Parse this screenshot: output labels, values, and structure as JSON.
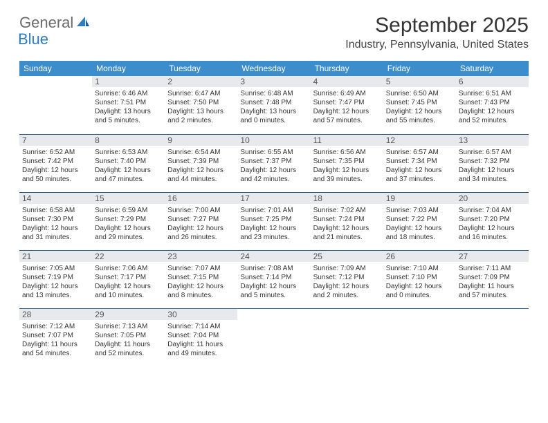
{
  "logo": {
    "general": "General",
    "blue": "Blue"
  },
  "title": "September 2025",
  "location": "Industry, Pennsylvania, United States",
  "header_bg": "#3c8dcb",
  "border_color": "#2b5a82",
  "daynum_bg": "#e7e9ec",
  "weekdays": [
    "Sunday",
    "Monday",
    "Tuesday",
    "Wednesday",
    "Thursday",
    "Friday",
    "Saturday"
  ],
  "start_offset": 1,
  "days": [
    {
      "n": 1,
      "sr": "6:46 AM",
      "ss": "7:51 PM",
      "dl": "13 hours and 5 minutes."
    },
    {
      "n": 2,
      "sr": "6:47 AM",
      "ss": "7:50 PM",
      "dl": "13 hours and 2 minutes."
    },
    {
      "n": 3,
      "sr": "6:48 AM",
      "ss": "7:48 PM",
      "dl": "13 hours and 0 minutes."
    },
    {
      "n": 4,
      "sr": "6:49 AM",
      "ss": "7:47 PM",
      "dl": "12 hours and 57 minutes."
    },
    {
      "n": 5,
      "sr": "6:50 AM",
      "ss": "7:45 PM",
      "dl": "12 hours and 55 minutes."
    },
    {
      "n": 6,
      "sr": "6:51 AM",
      "ss": "7:43 PM",
      "dl": "12 hours and 52 minutes."
    },
    {
      "n": 7,
      "sr": "6:52 AM",
      "ss": "7:42 PM",
      "dl": "12 hours and 50 minutes."
    },
    {
      "n": 8,
      "sr": "6:53 AM",
      "ss": "7:40 PM",
      "dl": "12 hours and 47 minutes."
    },
    {
      "n": 9,
      "sr": "6:54 AM",
      "ss": "7:39 PM",
      "dl": "12 hours and 44 minutes."
    },
    {
      "n": 10,
      "sr": "6:55 AM",
      "ss": "7:37 PM",
      "dl": "12 hours and 42 minutes."
    },
    {
      "n": 11,
      "sr": "6:56 AM",
      "ss": "7:35 PM",
      "dl": "12 hours and 39 minutes."
    },
    {
      "n": 12,
      "sr": "6:57 AM",
      "ss": "7:34 PM",
      "dl": "12 hours and 37 minutes."
    },
    {
      "n": 13,
      "sr": "6:57 AM",
      "ss": "7:32 PM",
      "dl": "12 hours and 34 minutes."
    },
    {
      "n": 14,
      "sr": "6:58 AM",
      "ss": "7:30 PM",
      "dl": "12 hours and 31 minutes."
    },
    {
      "n": 15,
      "sr": "6:59 AM",
      "ss": "7:29 PM",
      "dl": "12 hours and 29 minutes."
    },
    {
      "n": 16,
      "sr": "7:00 AM",
      "ss": "7:27 PM",
      "dl": "12 hours and 26 minutes."
    },
    {
      "n": 17,
      "sr": "7:01 AM",
      "ss": "7:25 PM",
      "dl": "12 hours and 23 minutes."
    },
    {
      "n": 18,
      "sr": "7:02 AM",
      "ss": "7:24 PM",
      "dl": "12 hours and 21 minutes."
    },
    {
      "n": 19,
      "sr": "7:03 AM",
      "ss": "7:22 PM",
      "dl": "12 hours and 18 minutes."
    },
    {
      "n": 20,
      "sr": "7:04 AM",
      "ss": "7:20 PM",
      "dl": "12 hours and 16 minutes."
    },
    {
      "n": 21,
      "sr": "7:05 AM",
      "ss": "7:19 PM",
      "dl": "12 hours and 13 minutes."
    },
    {
      "n": 22,
      "sr": "7:06 AM",
      "ss": "7:17 PM",
      "dl": "12 hours and 10 minutes."
    },
    {
      "n": 23,
      "sr": "7:07 AM",
      "ss": "7:15 PM",
      "dl": "12 hours and 8 minutes."
    },
    {
      "n": 24,
      "sr": "7:08 AM",
      "ss": "7:14 PM",
      "dl": "12 hours and 5 minutes."
    },
    {
      "n": 25,
      "sr": "7:09 AM",
      "ss": "7:12 PM",
      "dl": "12 hours and 2 minutes."
    },
    {
      "n": 26,
      "sr": "7:10 AM",
      "ss": "7:10 PM",
      "dl": "12 hours and 0 minutes."
    },
    {
      "n": 27,
      "sr": "7:11 AM",
      "ss": "7:09 PM",
      "dl": "11 hours and 57 minutes."
    },
    {
      "n": 28,
      "sr": "7:12 AM",
      "ss": "7:07 PM",
      "dl": "11 hours and 54 minutes."
    },
    {
      "n": 29,
      "sr": "7:13 AM",
      "ss": "7:05 PM",
      "dl": "11 hours and 52 minutes."
    },
    {
      "n": 30,
      "sr": "7:14 AM",
      "ss": "7:04 PM",
      "dl": "11 hours and 49 minutes."
    }
  ]
}
